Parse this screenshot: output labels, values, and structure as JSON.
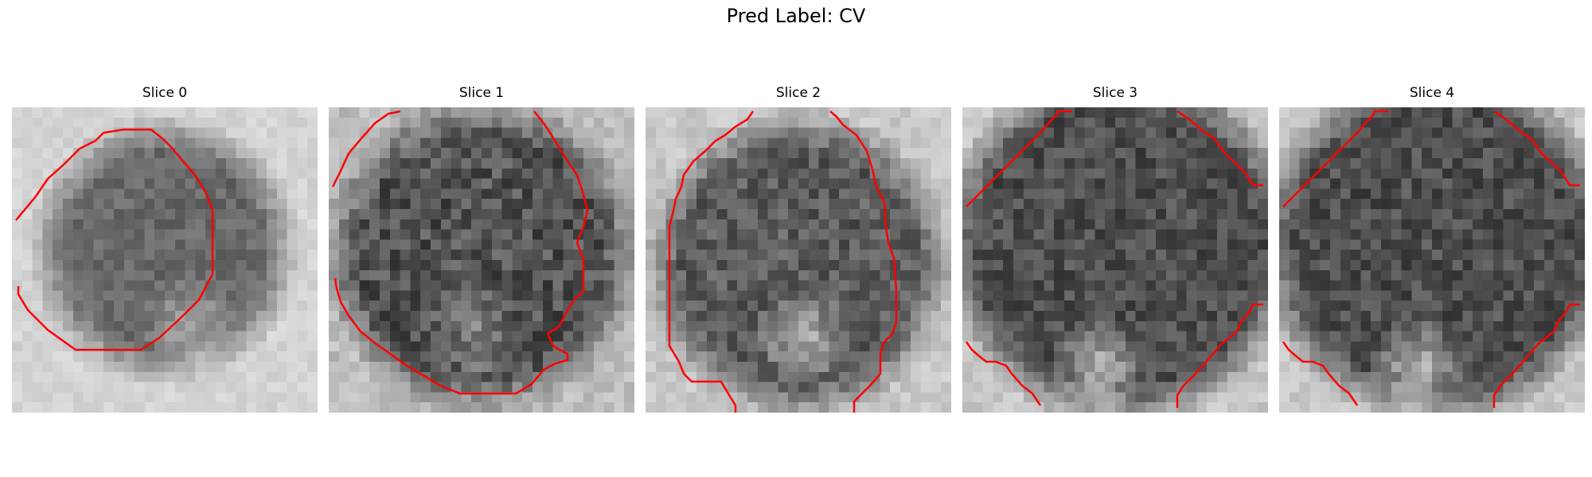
{
  "title": "Pred Label: CV",
  "contour_color": "#ff0000",
  "panels": [
    {
      "title": "Slice 0"
    },
    {
      "title": "Slice 1"
    },
    {
      "title": "Slice 2"
    },
    {
      "title": "Slice 3"
    },
    {
      "title": "Slice 4"
    }
  ]
}
